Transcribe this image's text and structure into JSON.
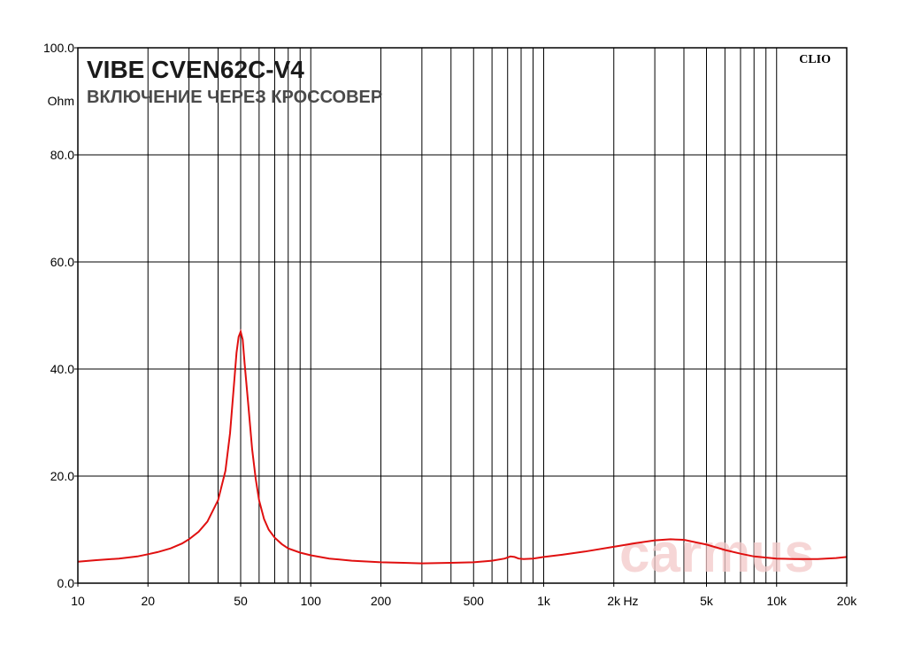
{
  "chart_data": {
    "type": "line",
    "title": "VIBE CVEN62C-V4",
    "subtitle": "ВКЛЮЧЕНИЕ ЧЕРЕЗ КРОССОВЕР",
    "brand": "CLIO",
    "watermark": "carmus",
    "xlabel": "Hz",
    "ylabel": "Ohm",
    "x_scale": "log",
    "xlim": [
      10,
      20000
    ],
    "ylim": [
      0,
      100
    ],
    "grid": true,
    "line_color": "#e01010",
    "y_ticks": [
      {
        "value": 0,
        "label": "0.0"
      },
      {
        "value": 20,
        "label": "20.0"
      },
      {
        "value": 40,
        "label": "40.0"
      },
      {
        "value": 60,
        "label": "60.0"
      },
      {
        "value": 80,
        "label": "80.0"
      },
      {
        "value": 100,
        "label": "100.0"
      }
    ],
    "x_ticks": [
      {
        "value": 10,
        "label": "10"
      },
      {
        "value": 20,
        "label": "20"
      },
      {
        "value": 50,
        "label": "50"
      },
      {
        "value": 100,
        "label": "100"
      },
      {
        "value": 200,
        "label": "200"
      },
      {
        "value": 500,
        "label": "500"
      },
      {
        "value": 1000,
        "label": "1k"
      },
      {
        "value": 2000,
        "label": "2k"
      },
      {
        "value": 5000,
        "label": "5k"
      },
      {
        "value": 10000,
        "label": "10k"
      },
      {
        "value": 20000,
        "label": "20k"
      }
    ],
    "x_gridlines": [
      20,
      30,
      40,
      50,
      60,
      70,
      80,
      90,
      100,
      200,
      300,
      400,
      500,
      600,
      700,
      800,
      900,
      1000,
      2000,
      3000,
      4000,
      5000,
      6000,
      7000,
      8000,
      9000,
      10000
    ],
    "y_gridlines": [
      20,
      40,
      60,
      80
    ],
    "series": [
      {
        "x": [
          10,
          12,
          15,
          18,
          20,
          22,
          25,
          28,
          30,
          33,
          36,
          40,
          43,
          45,
          47,
          48,
          49,
          50,
          51,
          52,
          54,
          56,
          58,
          60,
          63,
          66,
          70,
          75,
          80,
          90,
          100,
          120,
          150,
          200,
          250,
          300,
          400,
          500,
          600,
          680,
          720,
          750,
          780,
          820,
          900,
          1000,
          1200,
          1500,
          2000,
          2500,
          3000,
          3500,
          4000,
          5000,
          6000,
          7000,
          8000,
          10000,
          12000,
          15000,
          18000,
          20000
        ],
        "y": [
          4.0,
          4.3,
          4.6,
          5.0,
          5.4,
          5.8,
          6.5,
          7.4,
          8.2,
          9.6,
          11.5,
          15.5,
          21.0,
          28.0,
          38.0,
          43.0,
          46.0,
          47.0,
          45.5,
          41.0,
          33.0,
          25.0,
          19.5,
          15.5,
          12.0,
          10.0,
          8.5,
          7.3,
          6.5,
          5.7,
          5.2,
          4.6,
          4.2,
          3.9,
          3.8,
          3.7,
          3.8,
          3.9,
          4.2,
          4.6,
          5.0,
          4.9,
          4.6,
          4.5,
          4.6,
          4.9,
          5.3,
          5.9,
          6.8,
          7.5,
          8.0,
          8.2,
          8.1,
          7.2,
          6.2,
          5.5,
          5.0,
          4.6,
          4.5,
          4.5,
          4.7,
          4.9
        ]
      }
    ]
  }
}
